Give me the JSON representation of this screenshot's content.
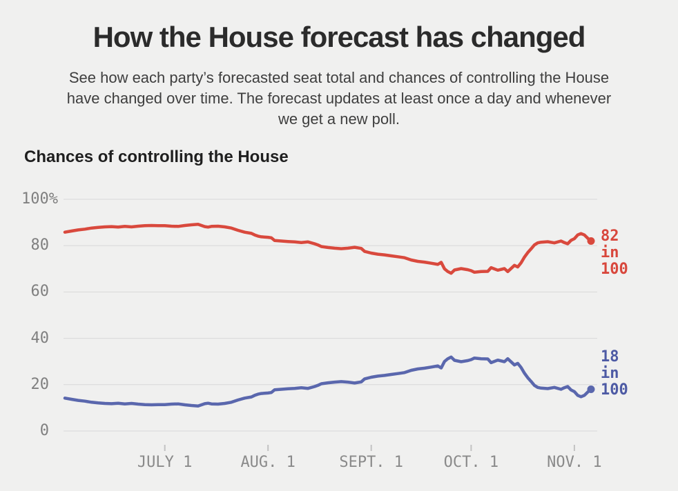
{
  "header": {
    "title": "How the House forecast has changed",
    "subtitle_lines": [
      "See how each party’s forecasted seat total and chances of controlling the House",
      "have changed over time. The forecast updates at least once a day and whenever",
      "we get a new poll."
    ]
  },
  "chart_data": {
    "type": "line",
    "title": "Chances of controlling the House",
    "grid": true,
    "legend": "end-of-line value labels",
    "y_axis": {
      "range": [
        0,
        100
      ],
      "ticks": [
        {
          "value": 100,
          "label": "100%"
        },
        {
          "value": 80,
          "label": "80"
        },
        {
          "value": 60,
          "label": "60"
        },
        {
          "value": 40,
          "label": "40"
        },
        {
          "value": 20,
          "label": "20"
        },
        {
          "value": 0,
          "label": "0"
        }
      ]
    },
    "x_axis": {
      "unit": "day_index_from_series_start",
      "span_days": 158,
      "ticks": [
        {
          "day": 30,
          "label": "JULY 1"
        },
        {
          "day": 61,
          "label": "AUG. 1"
        },
        {
          "day": 92,
          "label": "SEPT. 1"
        },
        {
          "day": 122,
          "label": "OCT. 1"
        },
        {
          "day": 153,
          "label": "NOV. 1"
        }
      ]
    },
    "series": [
      {
        "name": "red",
        "color": "#d9493d",
        "label_color": "#d8473c",
        "end_value": 82,
        "end_label_lines": [
          "82",
          "in",
          "100"
        ],
        "points": [
          [
            0,
            85.8
          ],
          [
            2,
            86.3
          ],
          [
            4,
            86.8
          ],
          [
            6,
            87.1
          ],
          [
            8,
            87.6
          ],
          [
            10,
            87.9
          ],
          [
            12,
            88.1
          ],
          [
            14,
            88.2
          ],
          [
            16,
            88.0
          ],
          [
            18,
            88.3
          ],
          [
            20,
            88.1
          ],
          [
            22,
            88.4
          ],
          [
            24,
            88.6
          ],
          [
            26,
            88.7
          ],
          [
            28,
            88.6
          ],
          [
            30,
            88.6
          ],
          [
            32,
            88.4
          ],
          [
            34,
            88.3
          ],
          [
            36,
            88.7
          ],
          [
            38,
            89.0
          ],
          [
            40,
            89.2
          ],
          [
            42,
            88.2
          ],
          [
            43,
            88.0
          ],
          [
            44,
            88.3
          ],
          [
            46,
            88.4
          ],
          [
            48,
            88.1
          ],
          [
            50,
            87.6
          ],
          [
            52,
            86.6
          ],
          [
            54,
            85.8
          ],
          [
            56,
            85.3
          ],
          [
            57,
            84.6
          ],
          [
            58,
            84.1
          ],
          [
            59,
            83.8
          ],
          [
            61,
            83.6
          ],
          [
            62,
            83.4
          ],
          [
            63,
            82.2
          ],
          [
            65,
            82.0
          ],
          [
            67,
            81.8
          ],
          [
            69,
            81.6
          ],
          [
            71,
            81.3
          ],
          [
            73,
            81.6
          ],
          [
            75,
            80.8
          ],
          [
            76,
            80.3
          ],
          [
            77,
            79.6
          ],
          [
            79,
            79.2
          ],
          [
            81,
            78.9
          ],
          [
            83,
            78.7
          ],
          [
            85,
            78.9
          ],
          [
            87,
            79.3
          ],
          [
            89,
            78.8
          ],
          [
            90,
            77.5
          ],
          [
            92,
            76.8
          ],
          [
            94,
            76.3
          ],
          [
            96,
            76.0
          ],
          [
            98,
            75.6
          ],
          [
            100,
            75.2
          ],
          [
            102,
            74.8
          ],
          [
            104,
            73.8
          ],
          [
            106,
            73.2
          ],
          [
            108,
            72.9
          ],
          [
            110,
            72.4
          ],
          [
            112,
            71.9
          ],
          [
            113,
            72.8
          ],
          [
            114,
            70.0
          ],
          [
            115,
            68.8
          ],
          [
            116,
            68.1
          ],
          [
            117,
            69.5
          ],
          [
            119,
            70.1
          ],
          [
            121,
            69.6
          ],
          [
            122,
            69.2
          ],
          [
            123,
            68.5
          ],
          [
            125,
            68.8
          ],
          [
            127,
            68.9
          ],
          [
            128,
            70.5
          ],
          [
            130,
            69.4
          ],
          [
            132,
            70.1
          ],
          [
            133,
            68.8
          ],
          [
            135,
            71.5
          ],
          [
            136,
            70.8
          ],
          [
            137,
            72.6
          ],
          [
            138,
            75.0
          ],
          [
            139,
            77.0
          ],
          [
            140,
            78.6
          ],
          [
            141,
            80.3
          ],
          [
            142,
            81.2
          ],
          [
            143,
            81.5
          ],
          [
            145,
            81.7
          ],
          [
            147,
            81.2
          ],
          [
            149,
            82.0
          ],
          [
            150,
            81.3
          ],
          [
            151,
            80.8
          ],
          [
            152,
            82.3
          ],
          [
            153,
            83.0
          ],
          [
            154,
            84.6
          ],
          [
            155,
            85.2
          ],
          [
            156,
            84.6
          ],
          [
            157,
            83.2
          ],
          [
            158,
            82.0
          ]
        ]
      },
      {
        "name": "blue",
        "color": "#5a67ad",
        "label_color": "#4d5aa4",
        "end_value": 18,
        "end_label_lines": [
          "18",
          "in",
          "100"
        ],
        "points": [
          [
            0,
            14.2
          ],
          [
            2,
            13.7
          ],
          [
            4,
            13.2
          ],
          [
            6,
            12.9
          ],
          [
            8,
            12.4
          ],
          [
            10,
            12.1
          ],
          [
            12,
            11.9
          ],
          [
            14,
            11.8
          ],
          [
            16,
            12.0
          ],
          [
            18,
            11.7
          ],
          [
            20,
            11.9
          ],
          [
            22,
            11.6
          ],
          [
            24,
            11.4
          ],
          [
            26,
            11.3
          ],
          [
            28,
            11.4
          ],
          [
            30,
            11.4
          ],
          [
            32,
            11.6
          ],
          [
            34,
            11.7
          ],
          [
            36,
            11.3
          ],
          [
            38,
            11.0
          ],
          [
            40,
            10.8
          ],
          [
            42,
            11.8
          ],
          [
            43,
            12.0
          ],
          [
            44,
            11.7
          ],
          [
            46,
            11.6
          ],
          [
            48,
            11.9
          ],
          [
            50,
            12.4
          ],
          [
            52,
            13.4
          ],
          [
            54,
            14.2
          ],
          [
            56,
            14.7
          ],
          [
            57,
            15.4
          ],
          [
            58,
            15.9
          ],
          [
            59,
            16.2
          ],
          [
            61,
            16.4
          ],
          [
            62,
            16.6
          ],
          [
            63,
            17.8
          ],
          [
            65,
            18.0
          ],
          [
            67,
            18.2
          ],
          [
            69,
            18.4
          ],
          [
            71,
            18.7
          ],
          [
            73,
            18.4
          ],
          [
            75,
            19.2
          ],
          [
            76,
            19.7
          ],
          [
            77,
            20.4
          ],
          [
            79,
            20.8
          ],
          [
            81,
            21.1
          ],
          [
            83,
            21.3
          ],
          [
            85,
            21.1
          ],
          [
            87,
            20.7
          ],
          [
            89,
            21.2
          ],
          [
            90,
            22.5
          ],
          [
            92,
            23.2
          ],
          [
            94,
            23.7
          ],
          [
            96,
            24.0
          ],
          [
            98,
            24.4
          ],
          [
            100,
            24.8
          ],
          [
            102,
            25.2
          ],
          [
            104,
            26.2
          ],
          [
            106,
            26.8
          ],
          [
            108,
            27.1
          ],
          [
            110,
            27.6
          ],
          [
            112,
            28.1
          ],
          [
            113,
            27.2
          ],
          [
            114,
            30.0
          ],
          [
            115,
            31.2
          ],
          [
            116,
            31.9
          ],
          [
            117,
            30.5
          ],
          [
            119,
            29.9
          ],
          [
            121,
            30.4
          ],
          [
            122,
            30.8
          ],
          [
            123,
            31.5
          ],
          [
            125,
            31.2
          ],
          [
            127,
            31.1
          ],
          [
            128,
            29.5
          ],
          [
            130,
            30.6
          ],
          [
            132,
            29.9
          ],
          [
            133,
            31.2
          ],
          [
            135,
            28.5
          ],
          [
            136,
            29.2
          ],
          [
            137,
            27.4
          ],
          [
            138,
            25.0
          ],
          [
            139,
            23.0
          ],
          [
            140,
            21.4
          ],
          [
            141,
            19.7
          ],
          [
            142,
            18.8
          ],
          [
            143,
            18.5
          ],
          [
            145,
            18.3
          ],
          [
            147,
            18.8
          ],
          [
            149,
            18.0
          ],
          [
            150,
            18.7
          ],
          [
            151,
            19.2
          ],
          [
            152,
            17.7
          ],
          [
            153,
            17.0
          ],
          [
            154,
            15.4
          ],
          [
            155,
            14.8
          ],
          [
            156,
            15.4
          ],
          [
            157,
            16.8
          ],
          [
            158,
            18.0
          ]
        ]
      }
    ]
  }
}
